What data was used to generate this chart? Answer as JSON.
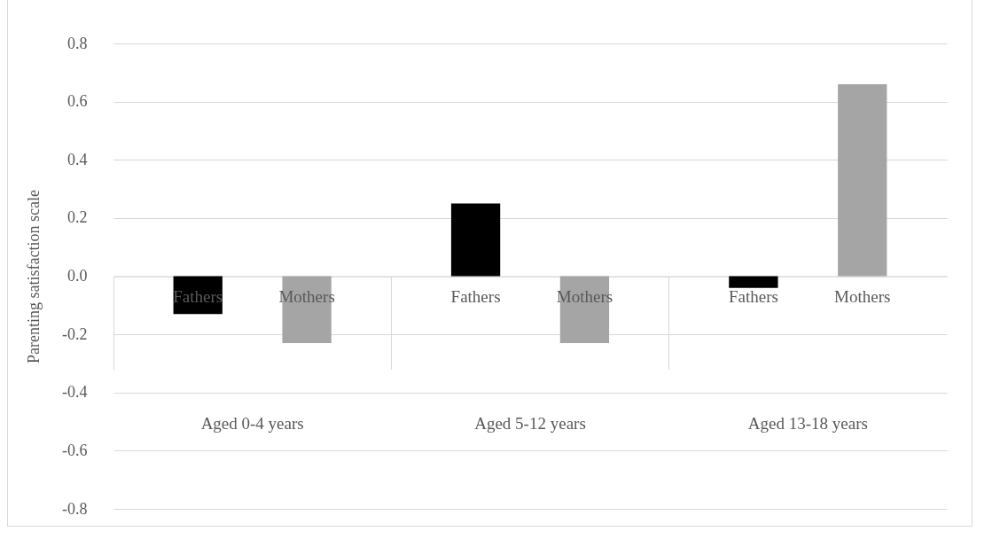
{
  "chart_data": {
    "type": "bar",
    "ylabel": "Parenting satisfaction scale",
    "categories": [
      "Aged 0-4 years",
      "Aged 5-12 years",
      "Aged 13-18 years"
    ],
    "series": [
      {
        "name": "Fathers",
        "color": "#000000",
        "values": [
          -0.13,
          0.25,
          -0.04
        ]
      },
      {
        "name": "Mothers",
        "color": "#a5a5a5",
        "values": [
          -0.23,
          -0.23,
          0.66
        ]
      }
    ],
    "ylim": [
      -0.8,
      0.8
    ],
    "yticks": [
      -0.8,
      -0.6,
      -0.4,
      -0.2,
      {
        "value": 0,
        "label": "0.0"
      },
      0.2,
      0.4,
      0.6,
      0.8
    ],
    "grid": "y",
    "legend": false
  }
}
